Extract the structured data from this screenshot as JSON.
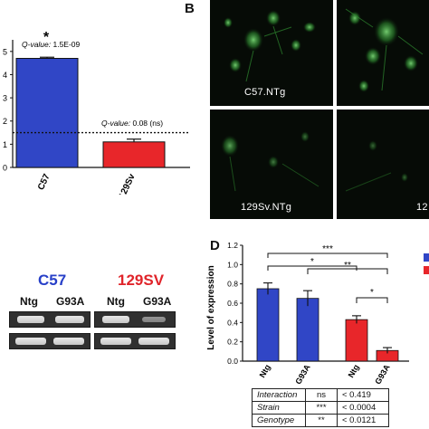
{
  "panel_a": {
    "asterisk": "*",
    "q1_label": "Q-value:",
    "q1_value": " 1.5E-09",
    "q2_label": "Q-value:",
    "q2_value": " 0.08 (ns)",
    "y_ticks": [
      "0",
      "1",
      "2",
      "3",
      "4",
      "5"
    ],
    "categories": [
      "C57",
      "129Sv"
    ],
    "colors": {
      "C57": "#3046c6",
      "129Sv": "#e8262a"
    }
  },
  "panel_b": {
    "letter": "B",
    "label_top_left": "C57.NTg",
    "label_bottom_left": "129Sv.NTg",
    "label_bottom_right_partial": "12"
  },
  "panel_c": {
    "strain1": "C57",
    "strain2": "129SV",
    "lanes": [
      "Ntg",
      "G93A",
      "Ntg",
      "G93A"
    ],
    "colors": {
      "strain1": "#2840c8",
      "strain2": "#e0242a"
    }
  },
  "panel_d": {
    "letter": "D",
    "ylabel": "Level of expression",
    "y_ticks": [
      "0.0",
      "0.2",
      "0.4",
      "0.6",
      "0.8",
      "1.0",
      "1.2"
    ],
    "sig_markers": [
      "***",
      "*",
      "**",
      "*"
    ],
    "categories": [
      "Ntg",
      "G93A",
      "Ntg",
      "G93A"
    ],
    "stats": [
      {
        "term": "Interaction",
        "sig": "ns",
        "p": "< 0.419"
      },
      {
        "term": "Strain",
        "sig": "***",
        "p": "< 0.0004"
      },
      {
        "term": "Genotype",
        "sig": "**",
        "p": "< 0.0121"
      }
    ]
  },
  "chart_data": [
    {
      "type": "bar",
      "categories": [
        "C57",
        "129Sv"
      ],
      "values": [
        4.7,
        1.1
      ],
      "errors": [
        0.05,
        0.12
      ],
      "ylim": [
        0,
        5.5
      ],
      "threshold_line": 1.5,
      "annotations": [
        "Q-value: 1.5E-09",
        "Q-value: 0.08 (ns)"
      ]
    },
    {
      "type": "bar",
      "categories": [
        "Ntg",
        "G93A",
        "Ntg",
        "G93A"
      ],
      "values": [
        0.75,
        0.65,
        0.43,
        0.11
      ],
      "errors": [
        0.06,
        0.08,
        0.04,
        0.03
      ],
      "group_colors": [
        "#3046c6",
        "#3046c6",
        "#e8262a",
        "#e8262a"
      ],
      "ylabel": "Level of expression",
      "ylim": [
        0,
        1.2
      ]
    }
  ]
}
